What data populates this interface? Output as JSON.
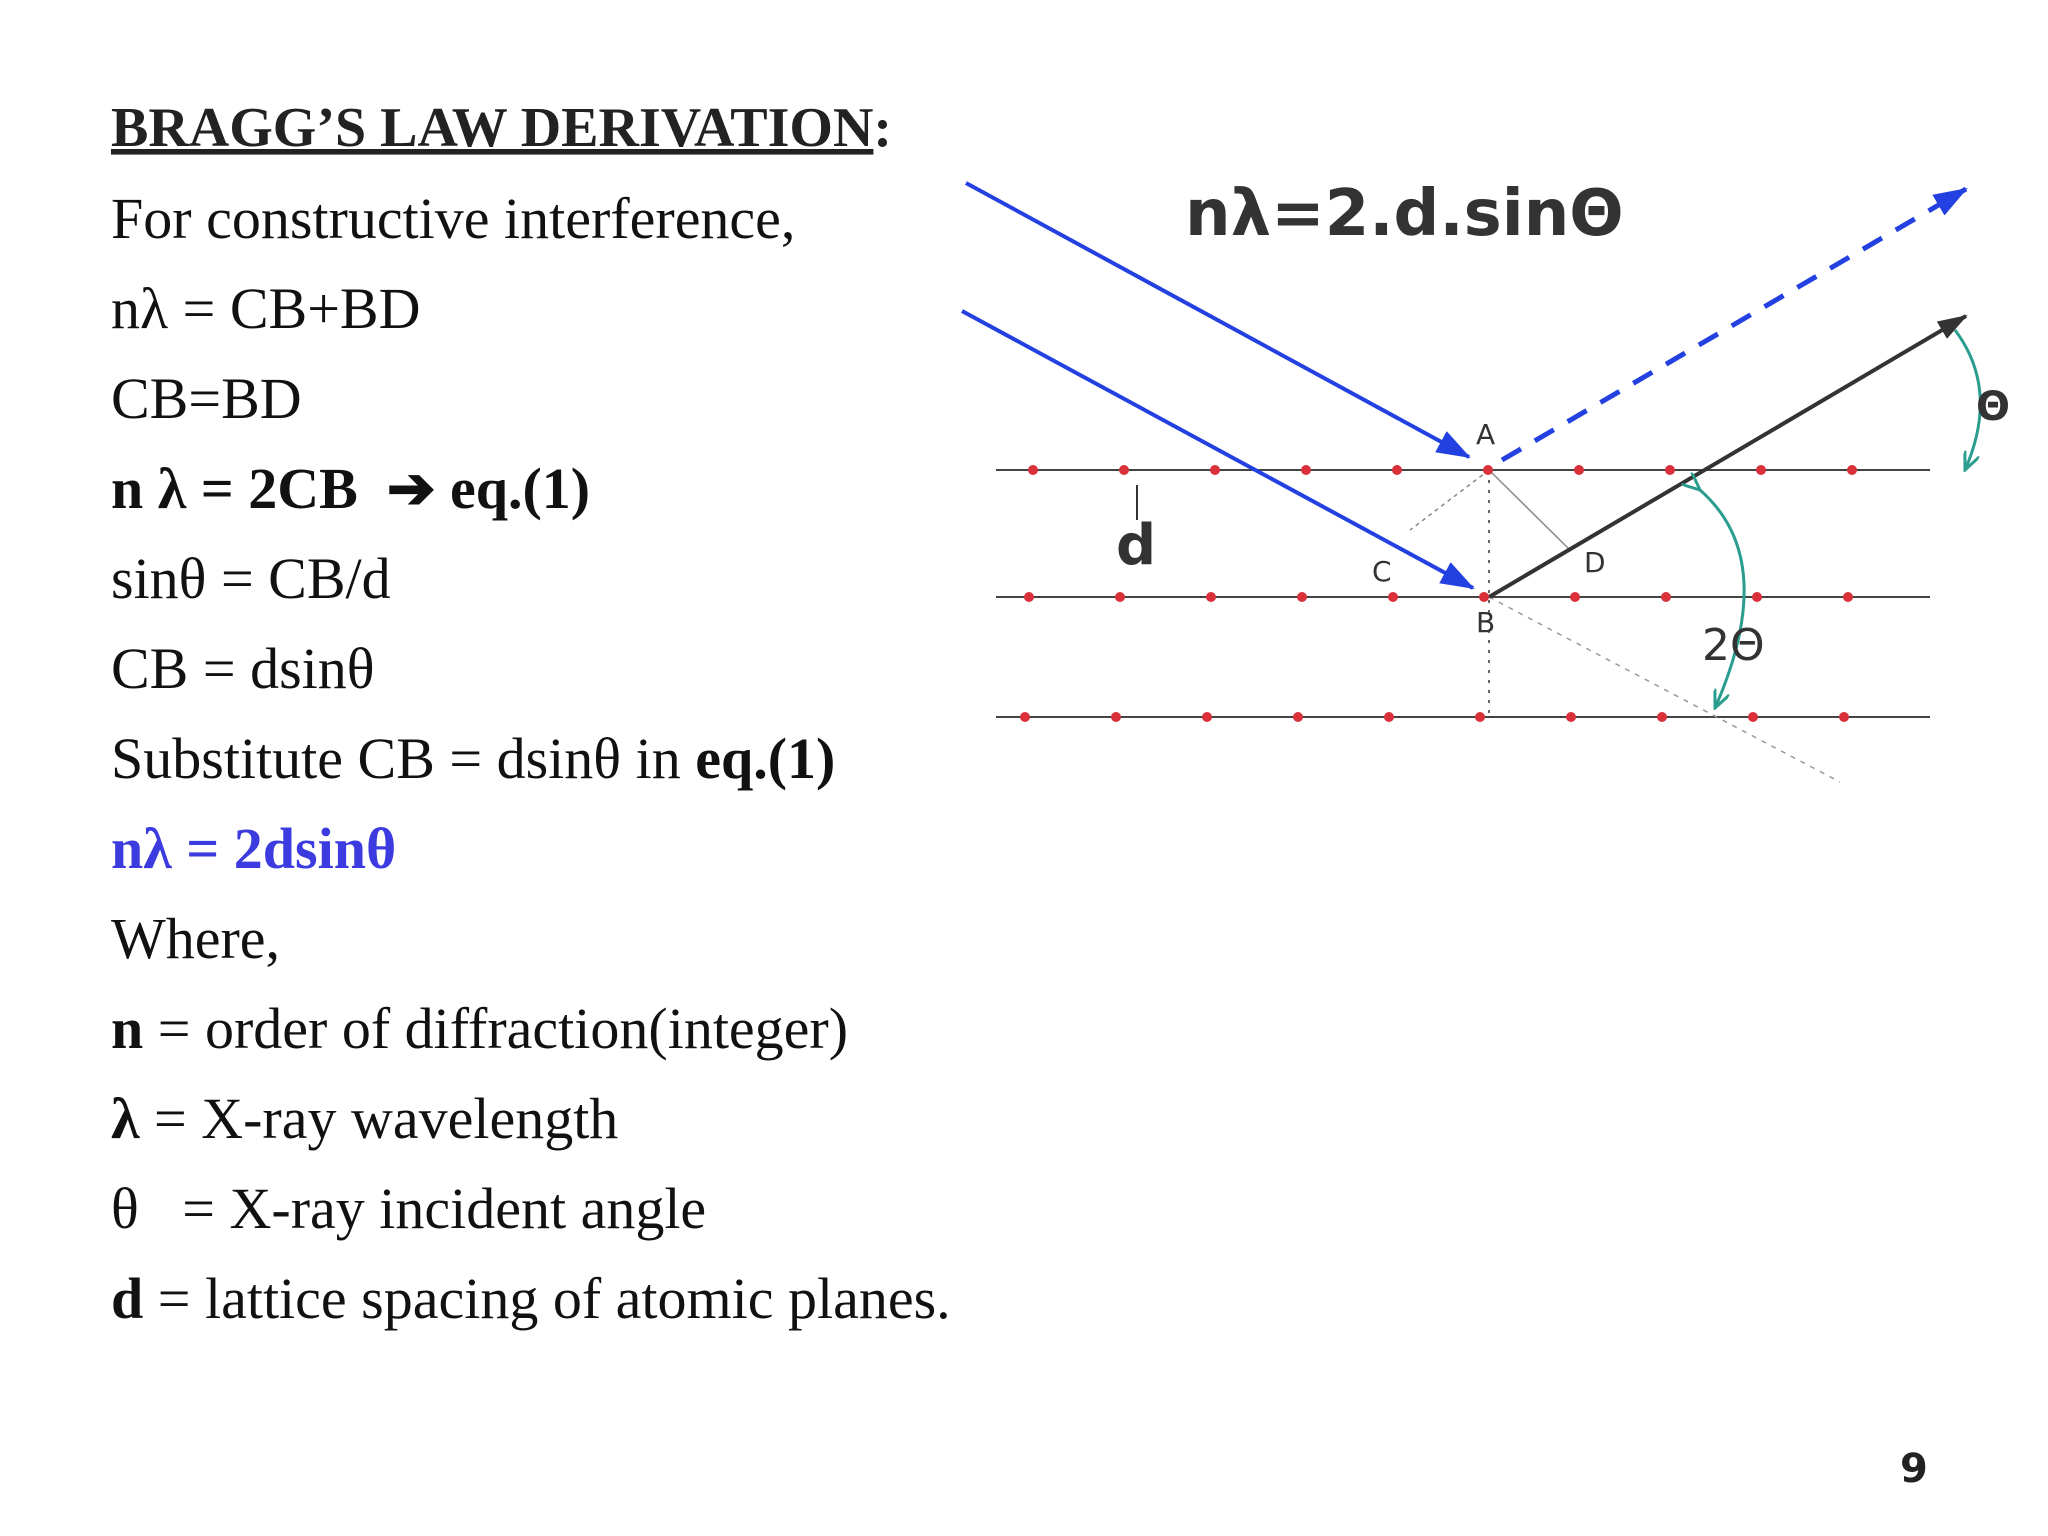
{
  "title": [
    {
      "text": "BRAGG’S LAW DERIVATION",
      "underline": true
    },
    {
      "text": ":",
      "underline": false
    }
  ],
  "lines": [
    [
      {
        "text": "For constructive interference,",
        "bold": false
      }
    ],
    [
      {
        "text": "nλ = CB+BD",
        "bold": false
      }
    ],
    [
      {
        "text": "CB=BD",
        "bold": false
      }
    ],
    [
      {
        "text": "n λ = 2CB  ➔ eq.(1)",
        "bold": true
      }
    ],
    [
      {
        "text": "sinθ = CB/d",
        "bold": false
      }
    ],
    [
      {
        "text": "CB = dsinθ",
        "bold": false
      }
    ],
    [
      {
        "text": "Substitute CB = dsinθ in ",
        "bold": false
      },
      {
        "text": "eq.(1)",
        "bold": true
      }
    ],
    [
      {
        "text": "nλ = 2dsinθ",
        "bold": true,
        "color": "#3b3bdf"
      }
    ],
    [
      {
        "text": "Where,",
        "bold": false
      }
    ],
    [
      {
        "text": "n",
        "bold": true
      },
      {
        "text": " = order of diffraction(integer)",
        "bold": false
      }
    ],
    [
      {
        "text": "λ",
        "bold": true
      },
      {
        "text": " = X-ray wavelength",
        "bold": false
      }
    ],
    [
      {
        "text": "θ   = X-ray incident angle",
        "bold": false
      }
    ],
    [
      {
        "text": "d",
        "bold": true
      },
      {
        "text": " = lattice spacing of atomic planes.",
        "bold": false
      }
    ]
  ],
  "diagram": {
    "formula": "nλ=2.d.sinΘ",
    "point_a": "A",
    "point_b": "B",
    "point_c": "C",
    "point_d": "D",
    "spacing": "d",
    "double_angle": "2Θ",
    "angle": "Θ"
  },
  "page_number": "9"
}
